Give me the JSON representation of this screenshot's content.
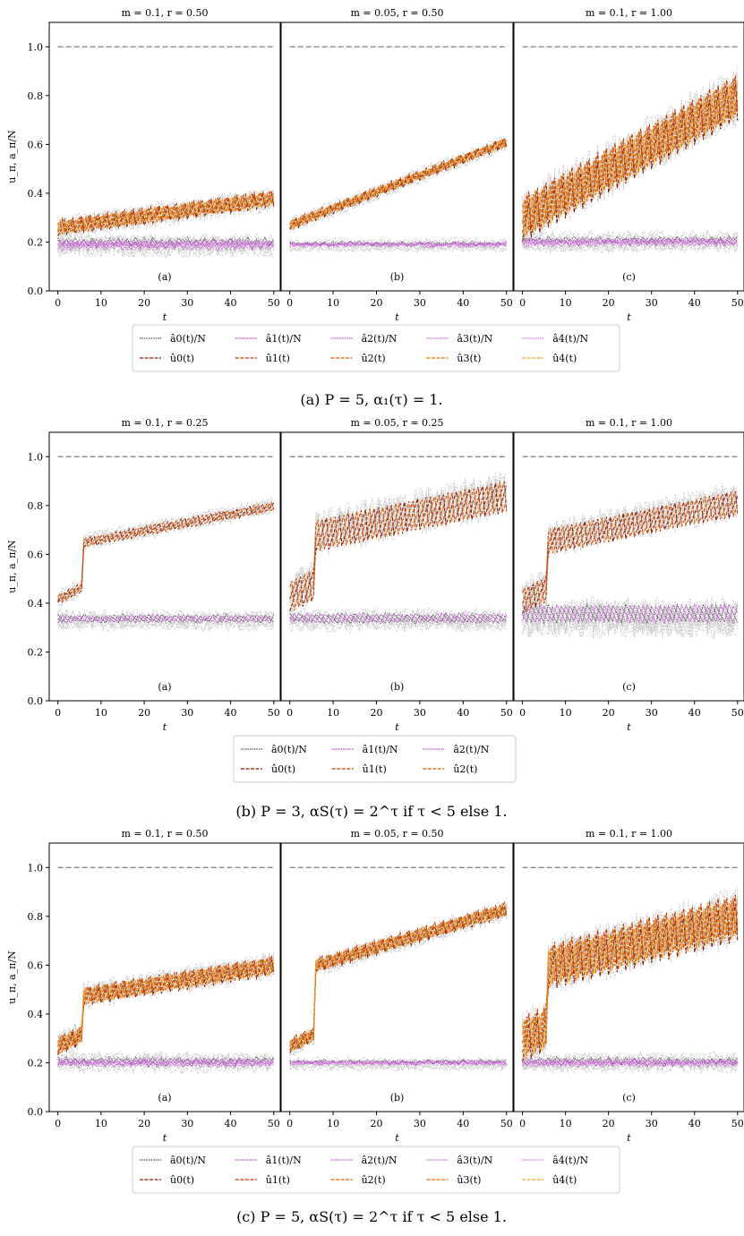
{
  "chart_data": [
    {
      "type": "line",
      "caption": "(a) P = 5, α₁(τ) = 1.",
      "ylabel": "u_π, a_π/N",
      "xlabel": "t",
      "xlim": [
        -2,
        51.5
      ],
      "ylim": [
        0,
        1.1
      ],
      "xticks": [
        "0",
        "10",
        "20",
        "30",
        "40",
        "50"
      ],
      "yticks": [
        "0.0",
        "0.2",
        "0.4",
        "0.6",
        "0.8",
        "1.0"
      ],
      "reference_line": 1.0,
      "legend": {
        "a": [
          "â0(t)/N",
          "â1(t)/N",
          "â2(t)/N",
          "â3(t)/N",
          "â4(t)/N"
        ],
        "u": [
          "û0(t)",
          "û1(t)",
          "û2(t)",
          "û3(t)",
          "û4(t)"
        ]
      },
      "panels": [
        {
          "title": "m = 0.1, r = 0.50",
          "label": "(a)",
          "u_start": 0.26,
          "u_end": 0.38,
          "u_amp": 0.07,
          "a_level": 0.19,
          "a_amp": 0.05,
          "shape": "linear"
        },
        {
          "title": "m = 0.05, r = 0.50",
          "label": "(b)",
          "u_start": 0.27,
          "u_end": 0.61,
          "u_amp": 0.04,
          "a_level": 0.19,
          "a_amp": 0.02,
          "shape": "linear"
        },
        {
          "title": "m = 0.1, r = 1.00",
          "label": "(c)",
          "u_start": 0.3,
          "u_end": 0.8,
          "u_amp": 0.2,
          "a_level": 0.2,
          "a_amp": 0.04,
          "shape": "linear"
        }
      ]
    },
    {
      "type": "line",
      "caption": "(b) P = 3, αS(τ) = 2^τ if τ < 5 else 1.",
      "ylabel": "u_π, a_π/N",
      "xlabel": "t",
      "xlim": [
        -2,
        51.5
      ],
      "ylim": [
        0,
        1.1
      ],
      "xticks": [
        "0",
        "10",
        "20",
        "30",
        "40",
        "50"
      ],
      "yticks": [
        "0.0",
        "0.2",
        "0.4",
        "0.6",
        "0.8",
        "1.0"
      ],
      "reference_line": 1.0,
      "legend": {
        "a": [
          "â0(t)/N",
          "â1(t)/N",
          "â2(t)/N"
        ],
        "u": [
          "û0(t)",
          "û1(t)",
          "û2(t)"
        ]
      },
      "panels": [
        {
          "title": "m = 0.1, r = 0.25",
          "label": "(a)",
          "u_start": 0.42,
          "u_end": 0.8,
          "u_amp": 0.04,
          "a_level": 0.33,
          "a_amp": 0.04,
          "shape": "jump"
        },
        {
          "title": "m = 0.05, r = 0.25",
          "label": "(b)",
          "u_start": 0.44,
          "u_end": 0.85,
          "u_amp": 0.15,
          "a_level": 0.33,
          "a_amp": 0.05,
          "shape": "jump"
        },
        {
          "title": "m = 0.1, r = 1.00",
          "label": "(c)",
          "u_start": 0.42,
          "u_end": 0.82,
          "u_amp": 0.12,
          "a_level": 0.34,
          "a_amp": 0.1,
          "shape": "jump"
        }
      ]
    },
    {
      "type": "line",
      "caption": "(c) P = 5, αS(τ) = 2^τ if τ < 5 else 1.",
      "ylabel": "u_π, a_π/N",
      "xlabel": "t",
      "xlim": [
        -2,
        51.5
      ],
      "ylim": [
        0,
        1.1
      ],
      "xticks": [
        "0",
        "10",
        "20",
        "30",
        "40",
        "50"
      ],
      "yticks": [
        "0.0",
        "0.2",
        "0.4",
        "0.6",
        "0.8",
        "1.0"
      ],
      "reference_line": 1.0,
      "legend": {
        "a": [
          "â0(t)/N",
          "â1(t)/N",
          "â2(t)/N",
          "â3(t)/N",
          "â4(t)/N"
        ],
        "u": [
          "û0(t)",
          "û1(t)",
          "û2(t)",
          "û3(t)",
          "û4(t)"
        ]
      },
      "panels": [
        {
          "title": "m = 0.1, r = 0.50",
          "label": "(a)",
          "u_start": 0.27,
          "u_end": 0.6,
          "u_amp": 0.08,
          "a_level": 0.2,
          "a_amp": 0.04,
          "shape": "jump"
        },
        {
          "title": "m = 0.05, r = 0.50",
          "label": "(b)",
          "u_start": 0.27,
          "u_end": 0.83,
          "u_amp": 0.06,
          "a_level": 0.2,
          "a_amp": 0.02,
          "shape": "jump"
        },
        {
          "title": "m = 0.1, r = 1.00",
          "label": "(c)",
          "u_start": 0.3,
          "u_end": 0.8,
          "u_amp": 0.2,
          "a_level": 0.2,
          "a_amp": 0.04,
          "shape": "jump"
        }
      ]
    }
  ],
  "colors": {
    "a_series": [
      "#555555",
      "#b040c0",
      "#c050d0",
      "#d060e0",
      "#e070f0"
    ],
    "u_series": [
      "#8b1a00",
      "#c03a00",
      "#d65a00",
      "#e07000",
      "#f0a030"
    ],
    "runs": "#c8c8c8",
    "reference": "#888888"
  }
}
